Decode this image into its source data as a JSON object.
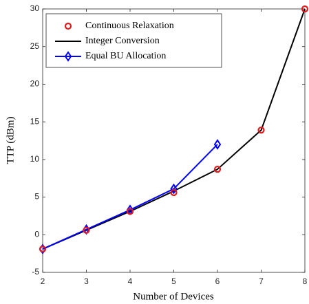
{
  "chart_data": {
    "type": "line",
    "xlabel": "Number of Devices",
    "ylabel": "TTP (dBm)",
    "x": [
      2,
      3,
      4,
      5,
      6,
      7,
      8
    ],
    "series": [
      {
        "name": "Continuous Relaxation",
        "color": "#e31a1c",
        "marker": "circle",
        "line": false,
        "values": [
          -1.9,
          0.6,
          3.1,
          5.6,
          8.7,
          13.9,
          30
        ]
      },
      {
        "name": "Integer Conversion",
        "color": "#000000",
        "marker": "none",
        "line": true,
        "values": [
          -1.9,
          0.6,
          3.1,
          5.8,
          8.7,
          13.9,
          30
        ]
      },
      {
        "name": "Equal BU Allocation",
        "color": "#0000ff",
        "marker": "diamond",
        "line": true,
        "values": [
          -1.9,
          0.7,
          3.3,
          6.1,
          12,
          null,
          null
        ]
      }
    ],
    "xlim": [
      2,
      8
    ],
    "xticks": [
      2,
      3,
      4,
      5,
      6,
      7,
      8
    ],
    "ylim": [
      -5,
      30
    ],
    "yticks": [
      -5,
      0,
      5,
      10,
      15,
      20,
      25,
      30
    ],
    "grid": false,
    "legend": "upper left"
  }
}
